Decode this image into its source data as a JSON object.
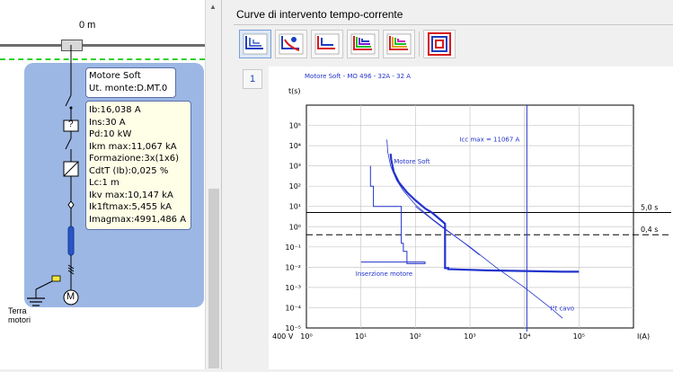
{
  "diagram": {
    "distance_label": "0 m",
    "load_title": "Motore Soft",
    "load_upstream": "Ut. monte:D.MT.0",
    "info": [
      "Ib:16,038 A",
      "Ins:30 A",
      "Pd:10 kW",
      "Ikm max:11,067 kA",
      "Formazione:3x(1x6)",
      "CdtT (Ib):0,025 %",
      "Lc:1 m",
      "Ikv max:10,147 kA",
      "Ik1ftmax:5,455 kA",
      "Imagmax:4991,486 A"
    ],
    "earth_label_1": "Terra",
    "earth_label_2": "motori",
    "motor_symbol": "M",
    "breaker_symbol": "?",
    "colors": {
      "panel": "#9db7e5",
      "busbar": "#6d6d6d",
      "dash_line": "#2fd12f"
    }
  },
  "scrollbar": {
    "up_arrow": "▲"
  },
  "right": {
    "title": "Curve di intervento tempo-corrente",
    "toolbar": [
      {
        "name": "curves-all-icon",
        "active": true
      },
      {
        "name": "curve-selective-icon",
        "active": false
      },
      {
        "name": "curve-red-blue-icon",
        "active": false
      },
      {
        "name": "curve-multicolor-icon",
        "active": false
      },
      {
        "name": "curve-multicolor-2-icon",
        "active": false
      },
      {
        "name": "concentric-squares-icon",
        "active": false
      }
    ],
    "page_button": "1"
  },
  "chart_data": {
    "type": "line",
    "title": "Motore Soft - MO 496 - 32A - 32 A",
    "ylabel": "t(s)",
    "xlabel": "I(A)",
    "voltage_label": "400 V",
    "x_scale": "log",
    "y_scale": "log",
    "xlim": [
      1,
      1000000
    ],
    "ylim": [
      1e-05,
      1000000
    ],
    "x_ticks": [
      "10⁰",
      "10¹",
      "10²",
      "10³",
      "10⁴",
      "10⁵"
    ],
    "y_ticks": [
      "10⁵",
      "10⁴",
      "10³",
      "10²",
      "10¹",
      "10⁰",
      "10⁻¹",
      "10⁻²",
      "10⁻³",
      "10⁻⁴",
      "10⁻⁵"
    ],
    "grid": true,
    "vertical_line": {
      "label": "Icc max = 11067 A",
      "x": 11067
    },
    "horizontal_lines": [
      {
        "label": "5,0 s",
        "y": 5,
        "style": "solid"
      },
      {
        "label": "0,4 s",
        "y": 0.4,
        "style": "dashed"
      }
    ],
    "series": [
      {
        "name": "Motore Soft",
        "style": "thick",
        "x": [
          35,
          36,
          40,
          50,
          70,
          100,
          150,
          200,
          300,
          350,
          350,
          400,
          400,
          2000,
          10000,
          50000,
          100000
        ],
        "y": [
          4000,
          2000,
          500,
          150,
          50,
          20,
          8,
          5,
          2,
          1.4,
          0.009,
          0.009,
          0.008,
          0.007,
          0.0065,
          0.006,
          0.006
        ]
      },
      {
        "name": "Inserzione motore",
        "style": "normal",
        "x": [
          15,
          15,
          17,
          17,
          55,
          55,
          60,
          60,
          70,
          70,
          150,
          150,
          10
        ],
        "y": [
          1000,
          100,
          100,
          10,
          10,
          0.15,
          0.15,
          0.06,
          0.06,
          0.015,
          0.015,
          0.018,
          0.018
        ]
      },
      {
        "name": "",
        "style": "thin",
        "x": [
          30,
          31,
          35,
          45,
          60,
          100,
          200,
          400,
          800,
          1500
        ],
        "y": [
          20000,
          5000,
          1000,
          200,
          60,
          12,
          2.5,
          0.6,
          0.15,
          0.04
        ]
      },
      {
        "name": "I²t cavo",
        "style": "thin",
        "x": [
          100,
          300,
          1000,
          3000,
          10000,
          30000,
          50000
        ],
        "y": [
          10,
          1,
          0.1,
          0.01,
          0.001,
          0.0001,
          3e-05
        ]
      }
    ]
  }
}
